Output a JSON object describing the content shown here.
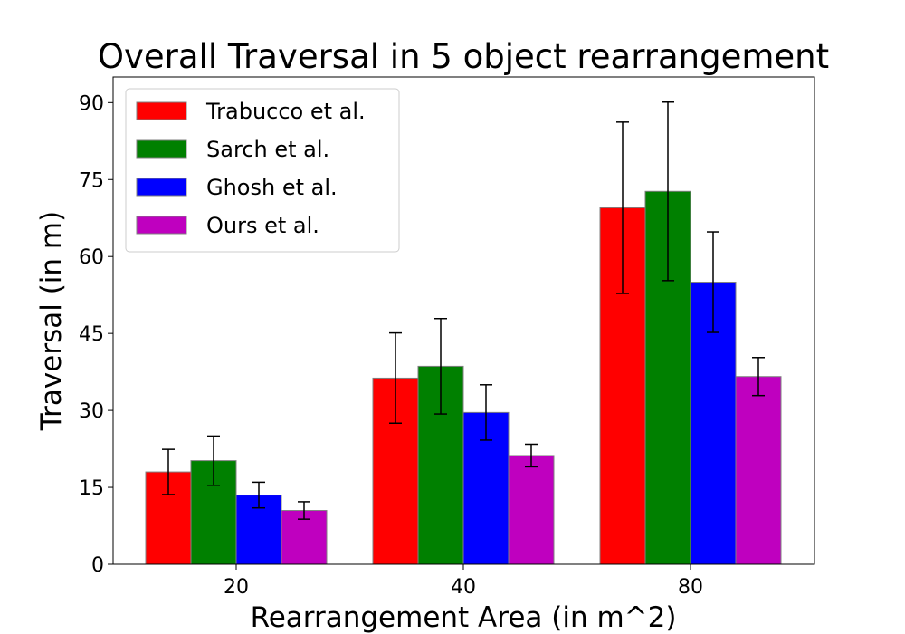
{
  "chart_data": {
    "type": "bar",
    "title": "Overall Traversal in 5 object rearrangement",
    "xlabel": "Rearrangement Area (in m^2)",
    "ylabel": "Traversal (in m)",
    "categories": [
      "20",
      "40",
      "80"
    ],
    "ylim": [
      0,
      95
    ],
    "yticks": [
      "0",
      "15",
      "30",
      "45",
      "60",
      "75",
      "90"
    ],
    "legend_position": "upper-left",
    "grid": false,
    "series": [
      {
        "name": "Trabucco et al.",
        "color": "#ff0000",
        "values": [
          18.0,
          36.3,
          69.5
        ],
        "errors": [
          4.4,
          8.8,
          16.7
        ]
      },
      {
        "name": "Sarch et al.",
        "color": "#008000",
        "values": [
          20.2,
          38.6,
          72.7
        ],
        "errors": [
          4.8,
          9.3,
          17.4
        ]
      },
      {
        "name": "Ghosh et al.",
        "color": "#0000ff",
        "values": [
          13.5,
          29.6,
          55.0
        ],
        "errors": [
          2.5,
          5.4,
          9.8
        ]
      },
      {
        "name": "Ours et al.",
        "color": "#bf00bf",
        "values": [
          10.5,
          21.2,
          36.6
        ],
        "errors": [
          1.7,
          2.2,
          3.7
        ]
      }
    ]
  }
}
